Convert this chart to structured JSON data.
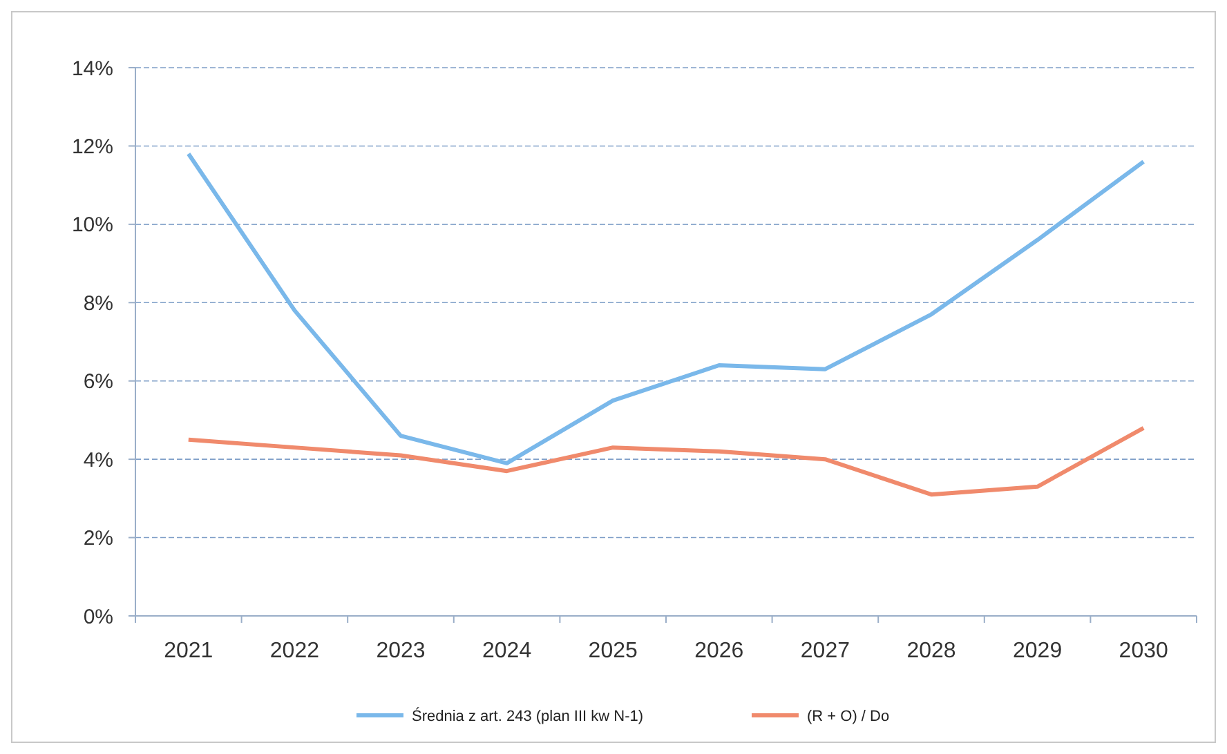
{
  "chart_data": {
    "type": "line",
    "categories": [
      "2021",
      "2022",
      "2023",
      "2024",
      "2025",
      "2026",
      "2027",
      "2028",
      "2029",
      "2030"
    ],
    "series": [
      {
        "name": "Średnia z art. 243 (plan III kw N-1)",
        "color": "#7ab8ea",
        "values": [
          11.8,
          7.8,
          4.6,
          3.9,
          5.5,
          6.4,
          6.3,
          7.7,
          9.6,
          11.6
        ]
      },
      {
        "name": "(R + O) / Do",
        "color": "#f08a6c",
        "values": [
          4.5,
          4.3,
          4.1,
          3.7,
          4.3,
          4.2,
          4.0,
          3.1,
          3.3,
          4.8
        ]
      }
    ],
    "ylim": [
      0,
      14
    ],
    "yticks": [
      {
        "value": 0,
        "label": "0%"
      },
      {
        "value": 2,
        "label": "2%"
      },
      {
        "value": 4,
        "label": "4%"
      },
      {
        "value": 6,
        "label": "6%"
      },
      {
        "value": 8,
        "label": "8%"
      },
      {
        "value": 10,
        "label": "10%"
      },
      {
        "value": 12,
        "label": "12%"
      },
      {
        "value": 14,
        "label": "14%"
      }
    ],
    "grid": "y",
    "legend": "bottom",
    "marker": "none",
    "line_style": "solid"
  }
}
